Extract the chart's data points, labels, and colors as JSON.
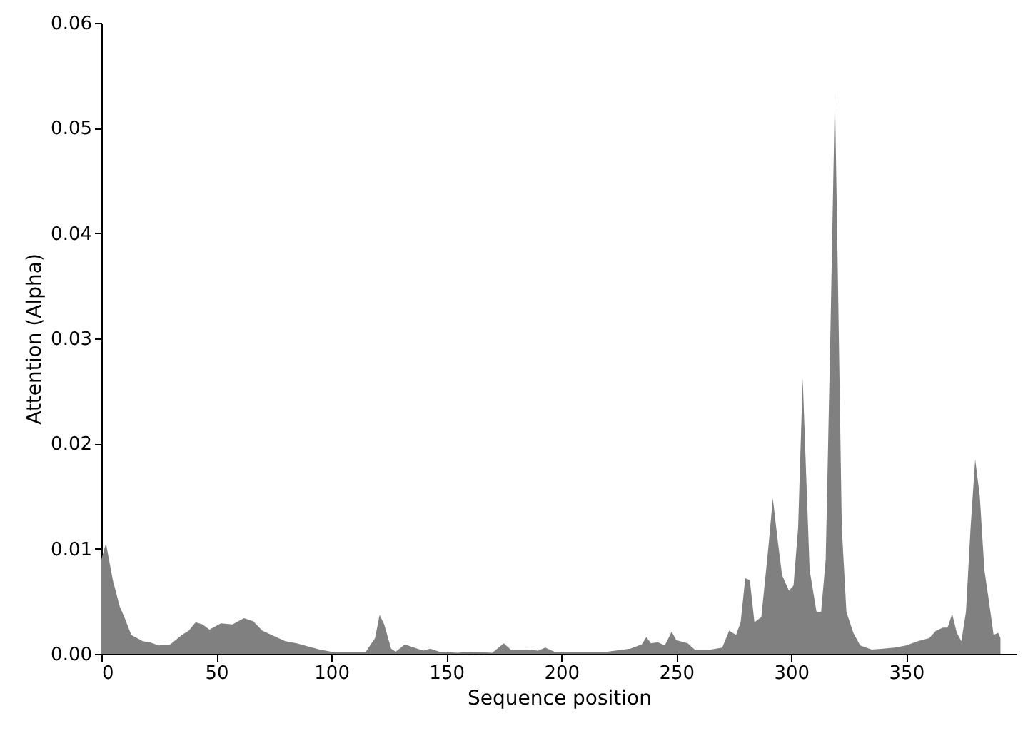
{
  "chart_data": {
    "type": "area",
    "xlabel": "Sequence position",
    "ylabel": "Attention (Alpha)",
    "xlim": [
      0,
      398
    ],
    "xticks": [
      0,
      50,
      100,
      150,
      200,
      250,
      300,
      350
    ],
    "ylim": [
      0,
      0.06
    ],
    "yticks": [
      {
        "value": 0,
        "label": "0.00"
      },
      {
        "value": 0.01,
        "label": "0.01"
      },
      {
        "value": 0.02,
        "label": "0.02"
      },
      {
        "value": 0.03,
        "label": "0.03"
      },
      {
        "value": 0.04,
        "label": "0.04"
      },
      {
        "value": 0.05,
        "label": "0.05"
      },
      {
        "value": 0.06,
        "label": "0.06"
      }
    ],
    "grid": false,
    "series": [
      {
        "color": "#808080",
        "x": [
          0,
          2,
          5,
          8,
          10,
          13,
          18,
          21,
          25,
          30,
          35,
          38,
          41,
          44,
          47,
          52,
          57,
          62,
          66,
          70,
          75,
          80,
          85,
          90,
          95,
          100,
          110,
          115,
          119,
          121,
          123,
          126,
          128,
          132,
          136,
          140,
          143,
          147,
          155,
          160,
          170,
          175,
          178,
          185,
          190,
          193,
          197,
          210,
          220,
          230,
          235,
          237,
          239,
          242,
          245,
          248,
          250,
          255,
          258,
          265,
          270,
          273,
          276,
          278,
          280,
          282,
          284,
          287,
          290,
          292,
          294,
          296,
          299,
          301,
          303,
          305,
          306,
          308,
          311,
          313,
          315,
          317,
          319,
          320,
          322,
          324,
          327,
          330,
          335,
          340,
          345,
          350,
          355,
          360,
          363,
          366,
          368,
          370,
          372,
          374,
          376,
          378,
          380,
          382,
          384,
          386,
          388,
          390,
          391
        ],
        "values": [
          0.009,
          0.0105,
          0.007,
          0.0045,
          0.0035,
          0.0018,
          0.0012,
          0.0011,
          0.0008,
          0.0009,
          0.0018,
          0.0022,
          0.003,
          0.0028,
          0.0023,
          0.0029,
          0.0028,
          0.0034,
          0.0031,
          0.0022,
          0.0017,
          0.0012,
          0.001,
          0.0007,
          0.0004,
          0.0002,
          0.0002,
          0.0002,
          0.0015,
          0.0037,
          0.0028,
          0.0005,
          0.0002,
          0.0009,
          0.0006,
          0.0003,
          0.0005,
          0.0002,
          0.0001,
          0.0002,
          0.0001,
          0.001,
          0.0004,
          0.0004,
          0.0003,
          0.0006,
          0.0002,
          0.0002,
          0.0002,
          0.0005,
          0.0009,
          0.0016,
          0.001,
          0.0011,
          0.0008,
          0.0021,
          0.0013,
          0.001,
          0.0004,
          0.0004,
          0.0006,
          0.0022,
          0.0018,
          0.003,
          0.0072,
          0.007,
          0.003,
          0.0035,
          0.01,
          0.0148,
          0.011,
          0.0075,
          0.006,
          0.0065,
          0.012,
          0.0262,
          0.02,
          0.008,
          0.004,
          0.004,
          0.009,
          0.03,
          0.0533,
          0.04,
          0.012,
          0.004,
          0.002,
          0.0008,
          0.0004,
          0.0005,
          0.0006,
          0.0008,
          0.0012,
          0.0015,
          0.0022,
          0.0025,
          0.0025,
          0.0038,
          0.002,
          0.0012,
          0.004,
          0.012,
          0.0185,
          0.015,
          0.008,
          0.005,
          0.0018,
          0.002,
          0.0015
        ]
      }
    ]
  }
}
